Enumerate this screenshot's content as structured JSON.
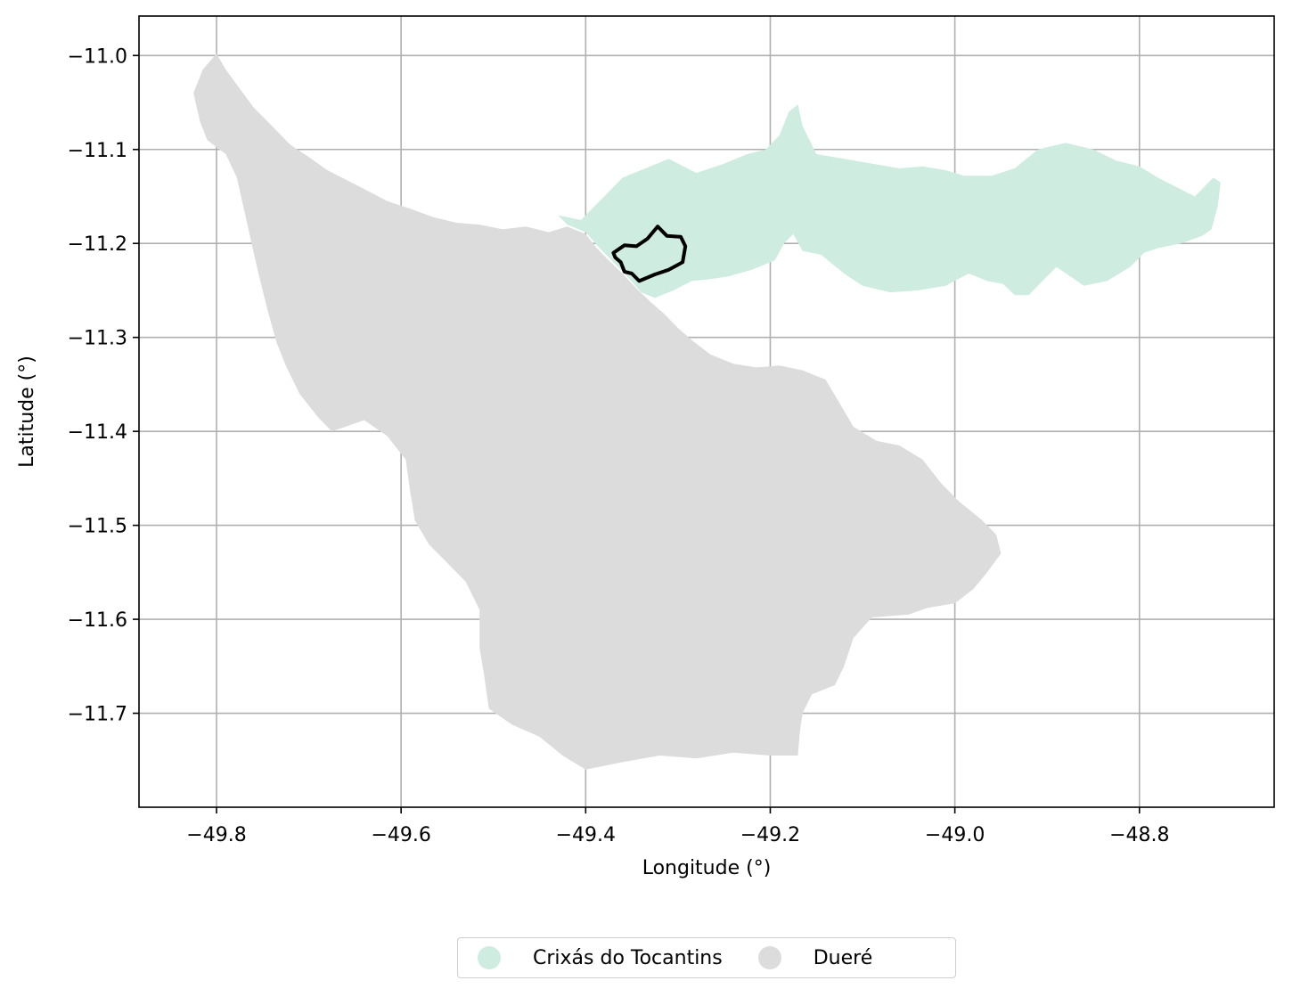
{
  "chart_data": {
    "type": "map",
    "xlabel": "Longitude (°)",
    "ylabel": "Latitude (°)",
    "xlim": [
      -49.884,
      -48.654
    ],
    "ylim": [
      -11.8,
      -10.958
    ],
    "xticks": [
      -49.8,
      -49.6,
      -49.4,
      -49.2,
      -49.0,
      -48.8
    ],
    "xtick_labels": [
      "−49.8",
      "−49.6",
      "−49.4",
      "−49.2",
      "−49.0",
      "−48.8"
    ],
    "yticks": [
      -11.0,
      -11.1,
      -11.2,
      -11.3,
      -11.4,
      -11.5,
      -11.6,
      -11.7
    ],
    "ytick_labels": [
      "−11.0",
      "−11.1",
      "−11.2",
      "−11.3",
      "−11.4",
      "−11.5",
      "−11.6",
      "−11.7"
    ],
    "grid": true,
    "legend_placement": "bottom-center",
    "regions": [
      {
        "name": "Crixás do Tocantins",
        "color": "#cfece0",
        "boundary": [
          [
            -49.43,
            -11.17
          ],
          [
            -49.405,
            -11.175
          ],
          [
            -49.39,
            -11.16
          ],
          [
            -49.375,
            -11.145
          ],
          [
            -49.36,
            -11.13
          ],
          [
            -49.335,
            -11.12
          ],
          [
            -49.31,
            -11.11
          ],
          [
            -49.28,
            -11.125
          ],
          [
            -49.25,
            -11.115
          ],
          [
            -49.225,
            -11.105
          ],
          [
            -49.205,
            -11.1
          ],
          [
            -49.19,
            -11.085
          ],
          [
            -49.18,
            -11.06
          ],
          [
            -49.17,
            -11.052
          ],
          [
            -49.165,
            -11.075
          ],
          [
            -49.15,
            -11.105
          ],
          [
            -49.12,
            -11.11
          ],
          [
            -49.09,
            -11.115
          ],
          [
            -49.06,
            -11.12
          ],
          [
            -49.035,
            -11.118
          ],
          [
            -49.01,
            -11.122
          ],
          [
            -48.99,
            -11.128
          ],
          [
            -48.96,
            -11.128
          ],
          [
            -48.935,
            -11.12
          ],
          [
            -48.91,
            -11.1
          ],
          [
            -48.88,
            -11.093
          ],
          [
            -48.85,
            -11.1
          ],
          [
            -48.825,
            -11.112
          ],
          [
            -48.8,
            -11.118
          ],
          [
            -48.78,
            -11.13
          ],
          [
            -48.76,
            -11.14
          ],
          [
            -48.74,
            -11.15
          ],
          [
            -48.73,
            -11.14
          ],
          [
            -48.72,
            -11.13
          ],
          [
            -48.712,
            -11.135
          ],
          [
            -48.715,
            -11.16
          ],
          [
            -48.722,
            -11.185
          ],
          [
            -48.732,
            -11.192
          ],
          [
            -48.755,
            -11.2
          ],
          [
            -48.78,
            -11.205
          ],
          [
            -48.795,
            -11.21
          ],
          [
            -48.81,
            -11.225
          ],
          [
            -48.835,
            -11.24
          ],
          [
            -48.86,
            -11.245
          ],
          [
            -48.89,
            -11.225
          ],
          [
            -48.905,
            -11.24
          ],
          [
            -48.92,
            -11.255
          ],
          [
            -48.935,
            -11.255
          ],
          [
            -48.948,
            -11.243
          ],
          [
            -48.965,
            -11.24
          ],
          [
            -48.985,
            -11.232
          ],
          [
            -49.01,
            -11.245
          ],
          [
            -49.04,
            -11.25
          ],
          [
            -49.07,
            -11.252
          ],
          [
            -49.1,
            -11.245
          ],
          [
            -49.12,
            -11.232
          ],
          [
            -49.145,
            -11.212
          ],
          [
            -49.165,
            -11.208
          ],
          [
            -49.175,
            -11.19
          ],
          [
            -49.185,
            -11.2
          ],
          [
            -49.195,
            -11.218
          ],
          [
            -49.22,
            -11.228
          ],
          [
            -49.245,
            -11.235
          ],
          [
            -49.265,
            -11.238
          ],
          [
            -49.285,
            -11.24
          ],
          [
            -49.305,
            -11.25
          ],
          [
            -49.325,
            -11.258
          ],
          [
            -49.34,
            -11.252
          ],
          [
            -49.355,
            -11.235
          ],
          [
            -49.372,
            -11.218
          ],
          [
            -49.385,
            -11.205
          ],
          [
            -49.4,
            -11.188
          ],
          [
            -49.42,
            -11.18
          ]
        ]
      },
      {
        "name": "Dueré",
        "color": "#dcdcdc",
        "boundary": [
          [
            -49.825,
            -11.04
          ],
          [
            -49.815,
            -11.015
          ],
          [
            -49.8,
            -10.998
          ],
          [
            -49.79,
            -11.015
          ],
          [
            -49.775,
            -11.035
          ],
          [
            -49.76,
            -11.055
          ],
          [
            -49.74,
            -11.075
          ],
          [
            -49.72,
            -11.095
          ],
          [
            -49.7,
            -11.108
          ],
          [
            -49.68,
            -11.122
          ],
          [
            -49.66,
            -11.132
          ],
          [
            -49.64,
            -11.142
          ],
          [
            -49.615,
            -11.155
          ],
          [
            -49.59,
            -11.163
          ],
          [
            -49.565,
            -11.172
          ],
          [
            -49.54,
            -11.178
          ],
          [
            -49.515,
            -11.18
          ],
          [
            -49.49,
            -11.185
          ],
          [
            -49.465,
            -11.182
          ],
          [
            -49.44,
            -11.188
          ],
          [
            -49.42,
            -11.182
          ],
          [
            -49.4,
            -11.19
          ],
          [
            -49.388,
            -11.205
          ],
          [
            -49.375,
            -11.218
          ],
          [
            -49.36,
            -11.232
          ],
          [
            -49.345,
            -11.248
          ],
          [
            -49.33,
            -11.262
          ],
          [
            -49.315,
            -11.275
          ],
          [
            -49.3,
            -11.29
          ],
          [
            -49.285,
            -11.303
          ],
          [
            -49.265,
            -11.318
          ],
          [
            -49.24,
            -11.328
          ],
          [
            -49.215,
            -11.332
          ],
          [
            -49.19,
            -11.33
          ],
          [
            -49.165,
            -11.335
          ],
          [
            -49.14,
            -11.345
          ],
          [
            -49.125,
            -11.37
          ],
          [
            -49.11,
            -11.395
          ],
          [
            -49.085,
            -11.41
          ],
          [
            -49.06,
            -11.415
          ],
          [
            -49.035,
            -11.43
          ],
          [
            -49.015,
            -11.455
          ],
          [
            -48.995,
            -11.475
          ],
          [
            -48.97,
            -11.495
          ],
          [
            -48.955,
            -11.51
          ],
          [
            -48.95,
            -11.53
          ],
          [
            -48.965,
            -11.55
          ],
          [
            -48.98,
            -11.568
          ],
          [
            -49.0,
            -11.583
          ],
          [
            -49.03,
            -11.588
          ],
          [
            -49.05,
            -11.595
          ],
          [
            -49.09,
            -11.598
          ],
          [
            -49.11,
            -11.62
          ],
          [
            -49.12,
            -11.65
          ],
          [
            -49.13,
            -11.67
          ],
          [
            -49.155,
            -11.68
          ],
          [
            -49.165,
            -11.7
          ],
          [
            -49.168,
            -11.72
          ],
          [
            -49.17,
            -11.745
          ],
          [
            -49.2,
            -11.745
          ],
          [
            -49.24,
            -11.742
          ],
          [
            -49.28,
            -11.748
          ],
          [
            -49.32,
            -11.745
          ],
          [
            -49.36,
            -11.752
          ],
          [
            -49.4,
            -11.76
          ],
          [
            -49.425,
            -11.745
          ],
          [
            -49.45,
            -11.725
          ],
          [
            -49.48,
            -11.712
          ],
          [
            -49.505,
            -11.695
          ],
          [
            -49.51,
            -11.66
          ],
          [
            -49.515,
            -11.63
          ],
          [
            -49.515,
            -11.59
          ],
          [
            -49.53,
            -11.56
          ],
          [
            -49.55,
            -11.54
          ],
          [
            -49.57,
            -11.52
          ],
          [
            -49.585,
            -11.495
          ],
          [
            -49.59,
            -11.465
          ],
          [
            -49.595,
            -11.43
          ],
          [
            -49.615,
            -11.405
          ],
          [
            -49.64,
            -11.388
          ],
          [
            -49.66,
            -11.395
          ],
          [
            -49.675,
            -11.4
          ],
          [
            -49.69,
            -11.385
          ],
          [
            -49.71,
            -11.36
          ],
          [
            -49.725,
            -11.33
          ],
          [
            -49.735,
            -11.305
          ],
          [
            -49.745,
            -11.27
          ],
          [
            -49.755,
            -11.23
          ],
          [
            -49.762,
            -11.2
          ],
          [
            -49.77,
            -11.165
          ],
          [
            -49.778,
            -11.13
          ],
          [
            -49.79,
            -11.105
          ],
          [
            -49.81,
            -11.09
          ],
          [
            -49.818,
            -11.07
          ]
        ]
      }
    ],
    "highlight_outline": {
      "color": "#000000",
      "boundary": [
        [
          -49.37,
          -11.21
        ],
        [
          -49.358,
          -11.202
        ],
        [
          -49.345,
          -11.203
        ],
        [
          -49.333,
          -11.195
        ],
        [
          -49.322,
          -11.182
        ],
        [
          -49.312,
          -11.192
        ],
        [
          -49.297,
          -11.193
        ],
        [
          -49.292,
          -11.203
        ],
        [
          -49.295,
          -11.22
        ],
        [
          -49.31,
          -11.228
        ],
        [
          -49.325,
          -11.233
        ],
        [
          -49.342,
          -11.24
        ],
        [
          -49.35,
          -11.232
        ],
        [
          -49.358,
          -11.23
        ],
        [
          -49.362,
          -11.22
        ],
        [
          -49.368,
          -11.215
        ]
      ]
    }
  },
  "legend": {
    "items": [
      {
        "label": "Crixás do Tocantins",
        "color": "#cfece0"
      },
      {
        "label": "Dueré",
        "color": "#dcdcdc"
      }
    ]
  }
}
